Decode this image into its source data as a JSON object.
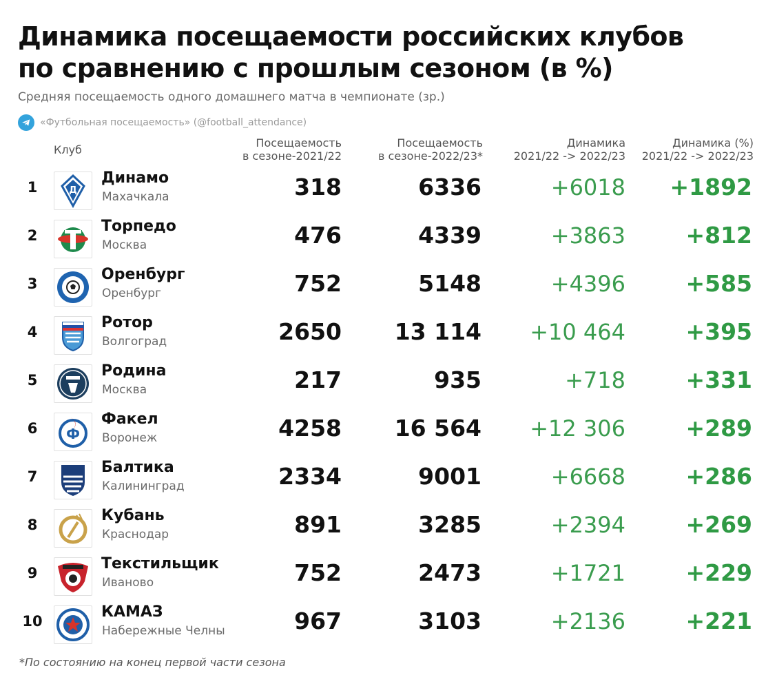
{
  "title_line1": "Динамика посещаемости российских клубов",
  "title_line2": "по сравнению с прошлым сезоном (в %)",
  "subtitle": "Средняя посещаемость одного домашнего матча в чемпионате (зр.)",
  "source": "«Футбольная посещаемость» (@football_attendance)",
  "columns": {
    "club": "Клуб",
    "att1_line1": "Посещаемость",
    "att1_line2": "в сезоне-2021/22",
    "att2_line1": "Посещаемость",
    "att2_line2": "в сезоне-2022/23*",
    "dyn_line1": "Динамика",
    "dyn_line2": "2021/22 -> 2022/23",
    "pct_line1": "Динамика (%)",
    "pct_line2": "2021/22 -> 2022/23"
  },
  "rows": [
    {
      "rank": "1",
      "name": "Динамо",
      "city": "Махачкала",
      "att_2021_22": "318",
      "att_2022_23": "6336",
      "change": "+6018",
      "change_pct": "+1892",
      "logo_icon": "dinamo-makhachkala-logo-icon"
    },
    {
      "rank": "2",
      "name": "Торпедо",
      "city": "Москва",
      "att_2021_22": "476",
      "att_2022_23": "4339",
      "change": "+3863",
      "change_pct": "+812",
      "logo_icon": "torpedo-logo-icon"
    },
    {
      "rank": "3",
      "name": "Оренбург",
      "city": "Оренбург",
      "att_2021_22": "752",
      "att_2022_23": "5148",
      "change": "+4396",
      "change_pct": "+585",
      "logo_icon": "orenburg-logo-icon"
    },
    {
      "rank": "4",
      "name": "Ротор",
      "city": "Волгоград",
      "att_2021_22": "2650",
      "att_2022_23": "13 114",
      "change": "+10 464",
      "change_pct": "+395",
      "logo_icon": "rotor-logo-icon"
    },
    {
      "rank": "5",
      "name": "Родина",
      "city": "Москва",
      "att_2021_22": "217",
      "att_2022_23": "935",
      "change": "+718",
      "change_pct": "+331",
      "logo_icon": "rodina-logo-icon"
    },
    {
      "rank": "6",
      "name": "Факел",
      "city": "Воронеж",
      "att_2021_22": "4258",
      "att_2022_23": "16 564",
      "change": "+12 306",
      "change_pct": "+289",
      "logo_icon": "fakel-logo-icon"
    },
    {
      "rank": "7",
      "name": "Балтика",
      "city": "Калининград",
      "att_2021_22": "2334",
      "att_2022_23": "9001",
      "change": "+6668",
      "change_pct": "+286",
      "logo_icon": "baltika-logo-icon"
    },
    {
      "rank": "8",
      "name": "Кубань",
      "city": "Краснодар",
      "att_2021_22": "891",
      "att_2022_23": "3285",
      "change": "+2394",
      "change_pct": "+269",
      "logo_icon": "kuban-logo-icon"
    },
    {
      "rank": "9",
      "name": "Текстильщик",
      "city": "Иваново",
      "att_2021_22": "752",
      "att_2022_23": "2473",
      "change": "+1721",
      "change_pct": "+229",
      "logo_icon": "tekstilshchik-logo-icon"
    },
    {
      "rank": "10",
      "name": "КАМАЗ",
      "city": "Набережные Челны",
      "att_2021_22": "967",
      "att_2022_23": "3103",
      "change": "+2136",
      "change_pct": "+221",
      "logo_icon": "kamaz-logo-icon"
    }
  ],
  "footnote": "*По состоянию на конец первой части сезона",
  "colors": {
    "change": "#3a9c4e",
    "change_pct": "#2f9a44",
    "telegram": "#33a3dc"
  },
  "chart_data": {
    "type": "table",
    "title": "Динамика посещаемости российских клубов по сравнению с прошлым сезоном (в %)",
    "subtitle": "Средняя посещаемость одного домашнего матча в чемпионате (зр.)",
    "columns": [
      "Клуб",
      "Посещаемость в сезоне-2021/22",
      "Посещаемость в сезоне-2022/23*",
      "Динамика 2021/22 -> 2022/23",
      "Динамика (%) 2021/22 -> 2022/23"
    ],
    "rows": [
      [
        "Динамо (Махачкала)",
        318,
        6336,
        6018,
        1892
      ],
      [
        "Торпедо (Москва)",
        476,
        4339,
        3863,
        812
      ],
      [
        "Оренбург (Оренбург)",
        752,
        5148,
        4396,
        585
      ],
      [
        "Ротор (Волгоград)",
        2650,
        13114,
        10464,
        395
      ],
      [
        "Родина (Москва)",
        217,
        935,
        718,
        331
      ],
      [
        "Факел (Воронеж)",
        4258,
        16564,
        12306,
        289
      ],
      [
        "Балтика (Калининград)",
        2334,
        9001,
        6668,
        286
      ],
      [
        "Кубань (Краснодар)",
        891,
        3285,
        2394,
        269
      ],
      [
        "Текстильщик (Иваново)",
        752,
        2473,
        1721,
        229
      ],
      [
        "КАМАЗ (Набережные Челны)",
        967,
        3103,
        2136,
        221
      ]
    ]
  }
}
